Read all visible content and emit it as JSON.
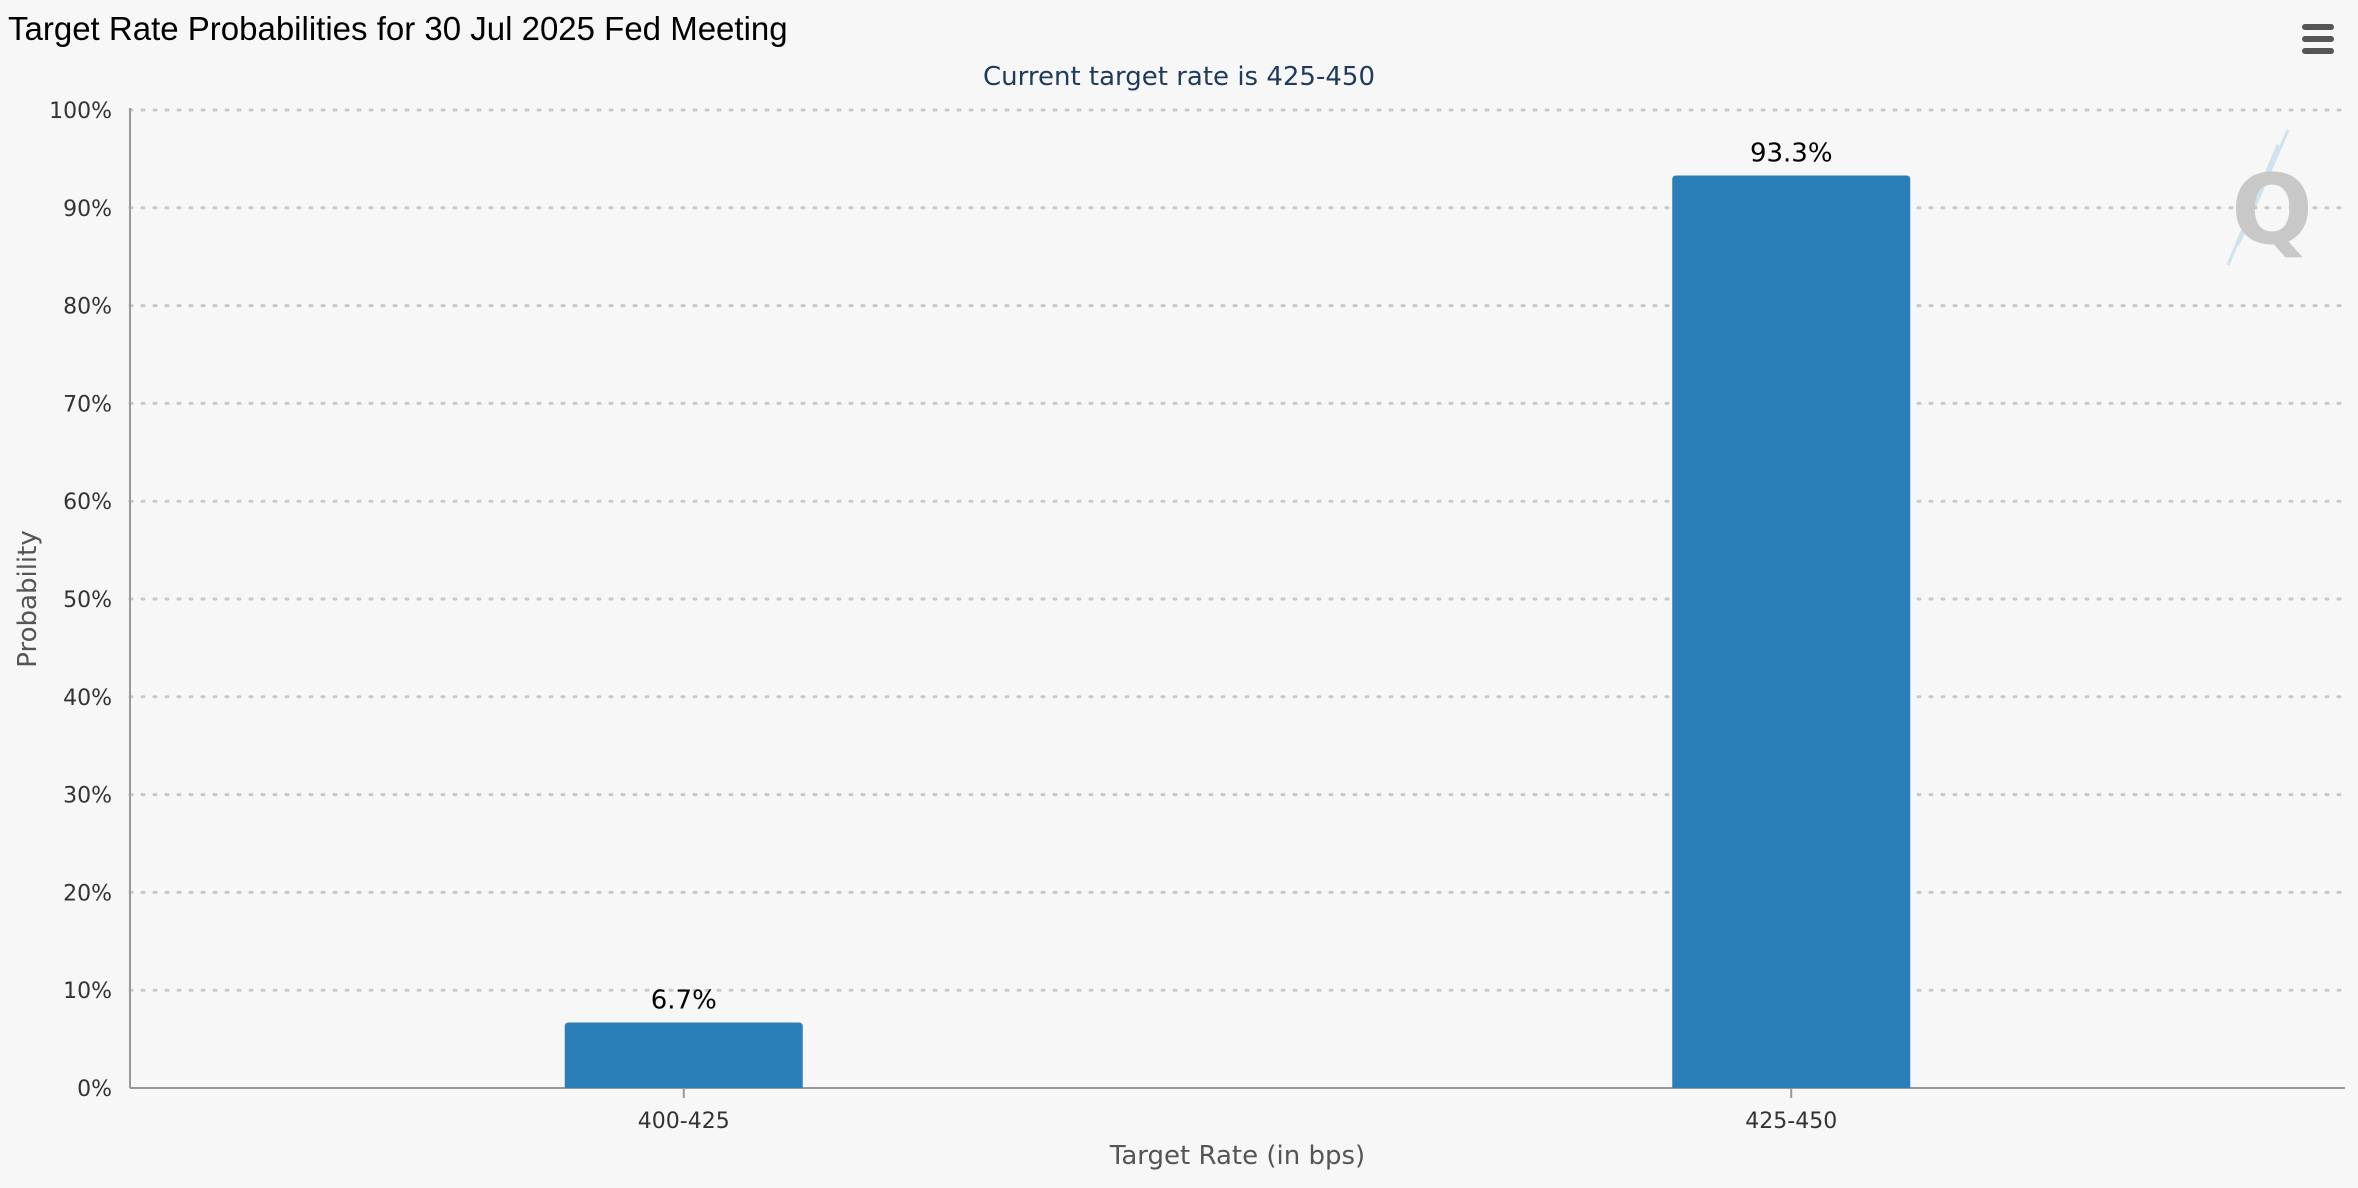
{
  "header": {
    "title": "Target Rate Probabilities for 30 Jul 2025 Fed Meeting",
    "subtitle": "Current target rate is 425-450",
    "menu_icon": "hamburger-menu-icon",
    "watermark_text": "Q"
  },
  "colors": {
    "bar": "#2a7fb8",
    "background": "#f7f7f7",
    "subtitle": "#1f3a5c"
  },
  "chart_data": {
    "type": "bar",
    "title": "Target Rate Probabilities for 30 Jul 2025 Fed Meeting",
    "subtitle": "Current target rate is 425-450",
    "categories": [
      "400-425",
      "425-450"
    ],
    "values": [
      6.7,
      93.3
    ],
    "data_labels": [
      "6.7%",
      "93.3%"
    ],
    "xlabel": "Target Rate (in bps)",
    "ylabel": "Probability",
    "ylim": [
      0,
      100
    ],
    "yticks": [
      "0%",
      "10%",
      "20%",
      "30%",
      "40%",
      "50%",
      "60%",
      "70%",
      "80%",
      "90%",
      "100%"
    ],
    "grid": true,
    "legend": "none"
  }
}
